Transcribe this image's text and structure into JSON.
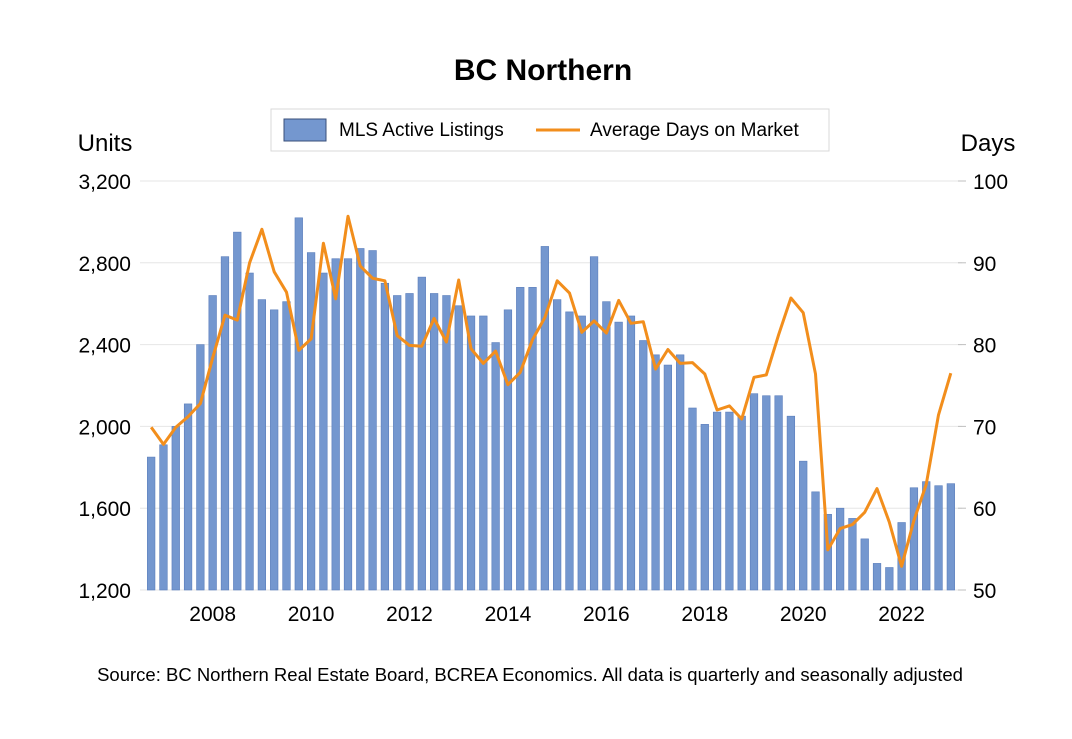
{
  "chart_data": {
    "type": "bar",
    "title": "BC Northern",
    "y_left_label": "Units",
    "y_right_label": "Days",
    "ylim_left": [
      1200,
      3200
    ],
    "ylim_right": [
      50,
      100
    ],
    "y_left_ticks": [
      "1,200",
      "1,600",
      "2,000",
      "2,400",
      "2,800",
      "3,200"
    ],
    "y_right_ticks": [
      "50",
      "60",
      "70",
      "80",
      "90",
      "100"
    ],
    "x_ticks": [
      "2008",
      "2010",
      "2012",
      "2014",
      "2016",
      "2018",
      "2020",
      "2022"
    ],
    "x_start_year": 2006.75,
    "grid": true,
    "legend": {
      "position": "top-center",
      "entries": [
        {
          "label": "MLS Active Listings",
          "kind": "bar"
        },
        {
          "label": "Average Days on Market",
          "kind": "line"
        }
      ]
    },
    "colors": {
      "bars": "#7497cf",
      "bar_edge": "#5a7dbb",
      "line": "#f28e1c",
      "grid": "#e6e6e6"
    },
    "series": [
      {
        "name": "MLS Active Listings",
        "axis": "left",
        "kind": "bar",
        "values": [
          1850,
          1910,
          2000,
          2110,
          2400,
          2640,
          2830,
          2950,
          2750,
          2620,
          2570,
          2610,
          3020,
          2850,
          2750,
          2820,
          2820,
          2870,
          2860,
          2700,
          2640,
          2650,
          2730,
          2650,
          2640,
          2590,
          2540,
          2540,
          2410,
          2570,
          2680,
          2680,
          2880,
          2620,
          2560,
          2540,
          2830,
          2610,
          2510,
          2540,
          2420,
          2350,
          2300,
          2350,
          2090,
          2010,
          2070,
          2070,
          2050,
          2160,
          2150,
          2150,
          2050,
          1830,
          1680,
          1570,
          1600,
          1550,
          1450,
          1330,
          1310,
          1530,
          1700,
          1730,
          1710,
          1720
        ]
      },
      {
        "name": "Average Days on Market",
        "axis": "right",
        "kind": "line",
        "values": [
          69.9,
          67.8,
          69.9,
          71.2,
          72.8,
          78.4,
          83.6,
          83.0,
          90.0,
          94.1,
          88.9,
          86.4,
          79.3,
          80.7,
          92.4,
          85.6,
          95.7,
          89.6,
          88.1,
          87.8,
          81.1,
          79.9,
          79.8,
          83.2,
          80.3,
          87.9,
          79.5,
          77.7,
          79.2,
          75.1,
          76.6,
          80.6,
          83.3,
          87.8,
          86.3,
          81.5,
          82.9,
          81.4,
          85.4,
          82.6,
          82.8,
          77.0,
          79.4,
          77.7,
          77.8,
          76.4,
          72.0,
          72.5,
          70.9,
          76.0,
          76.3,
          81.2,
          85.7,
          83.9,
          76.4,
          54.9,
          57.5,
          58.0,
          59.5,
          62.4,
          58.3,
          52.9,
          58.5,
          62.9,
          71.4,
          76.5
        ]
      }
    ]
  },
  "source_text": "Source: BC Northern Real Estate Board, BCREA Economics. All data is quarterly and seasonally adjusted"
}
